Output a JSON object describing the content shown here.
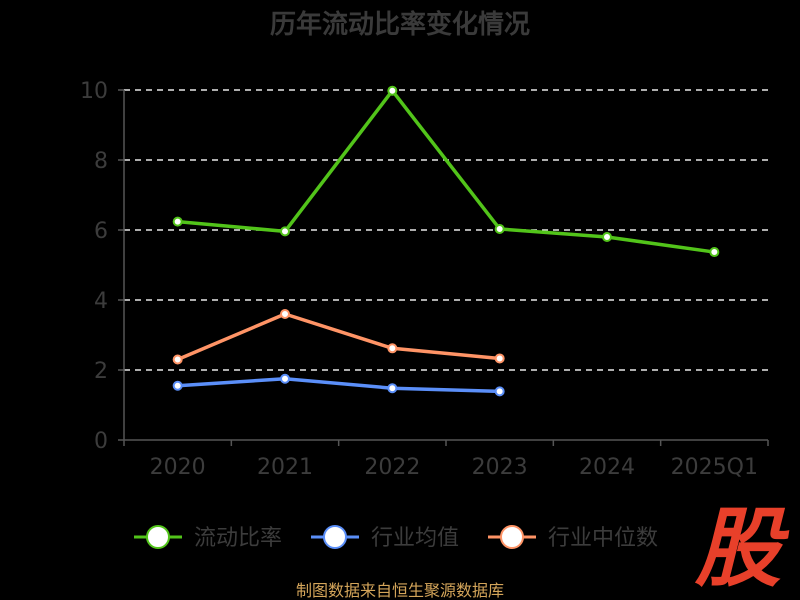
{
  "chart_data": {
    "type": "line",
    "title": "历年流动比率变化情况",
    "categories": [
      "2020",
      "2021",
      "2022",
      "2023",
      "2024",
      "2025Q1"
    ],
    "yticks": [
      "0",
      "2",
      "4",
      "6",
      "8",
      "10"
    ],
    "ylim": [
      0,
      10
    ],
    "grid": true,
    "legend_position": "bottom",
    "series": [
      {
        "name": "流动比率",
        "color": "#52c41a",
        "values": [
          6.24,
          5.96,
          9.98,
          6.03,
          5.8,
          5.37
        ]
      },
      {
        "name": "行业均值",
        "color": "#5b8ff9",
        "values": [
          1.55,
          1.75,
          1.48,
          1.39,
          null,
          null
        ]
      },
      {
        "name": "行业中位数",
        "color": "#ff9466",
        "values": [
          2.3,
          3.6,
          2.62,
          2.33,
          null,
          null
        ]
      }
    ]
  },
  "footer": {
    "source": "制图数据来自恒生聚源数据库"
  },
  "watermark": {
    "text": "股"
  }
}
